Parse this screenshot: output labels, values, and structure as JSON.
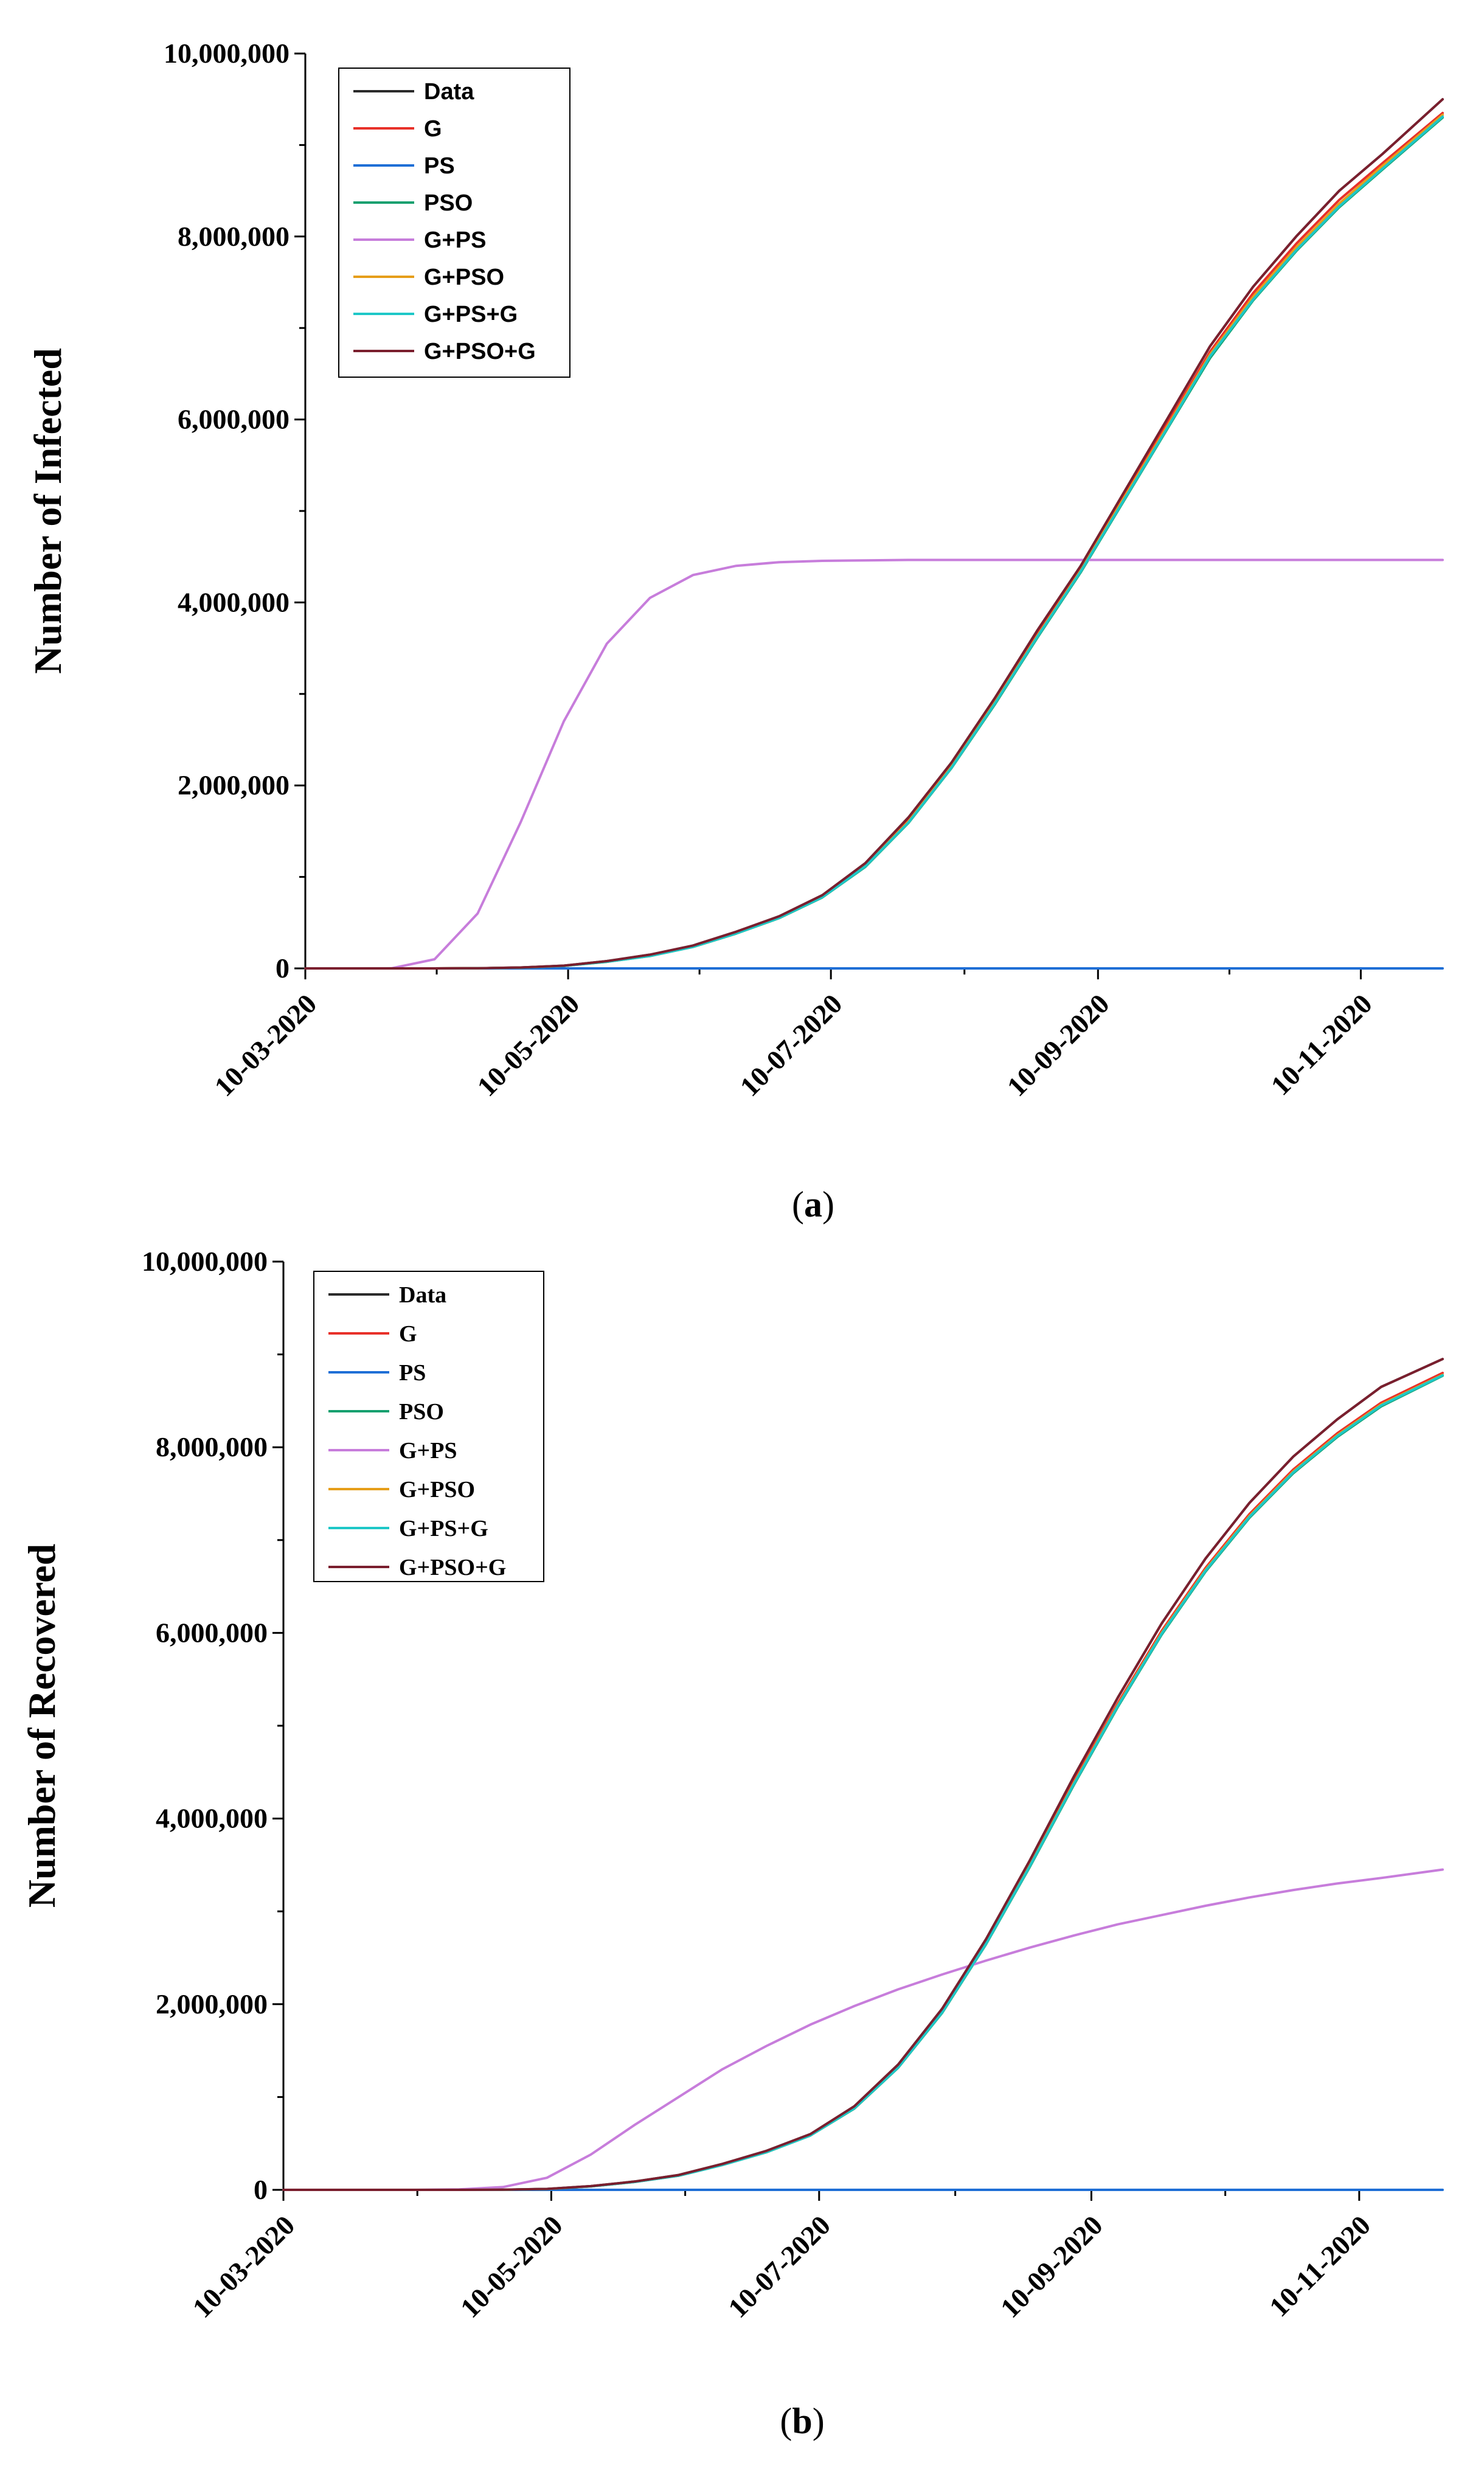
{
  "chart_data": [
    {
      "type": "line",
      "panel": "(a)",
      "panel_letter": "a",
      "title": "",
      "xlabel": "",
      "ylabel": "Number of Infected",
      "ylim": [
        0,
        10000000
      ],
      "xlim": [
        0,
        264
      ],
      "y_ticks": [
        0,
        2000000,
        4000000,
        6000000,
        8000000,
        10000000
      ],
      "y_tick_labels": [
        "0",
        "2,000,000",
        "4,000,000",
        "6,000,000",
        "8,000,000",
        "10,000,000"
      ],
      "x_tick_days": [
        0,
        61,
        122,
        184,
        245
      ],
      "x_tick_labels": [
        "10-03-2020",
        "10-05-2020",
        "10-07-2020",
        "10-09-2020",
        "10-11-2020"
      ],
      "legend_position": "top-left",
      "x_days": [
        0,
        10,
        20,
        30,
        40,
        50,
        60,
        70,
        80,
        90,
        100,
        110,
        120,
        130,
        140,
        150,
        160,
        170,
        180,
        190,
        200,
        210,
        220,
        230,
        240,
        250,
        264
      ],
      "series": [
        {
          "name": "Data",
          "color": "#2b2b2b",
          "values": [
            0,
            0,
            0,
            200,
            2000,
            10000,
            30000,
            80000,
            150000,
            250000,
            400000,
            570000,
            800000,
            1150000,
            1650000,
            2250000,
            2950000,
            3700000,
            4400000,
            5200000,
            6000000,
            6800000,
            7450000,
            8000000,
            8500000,
            8900000,
            9500000
          ]
        },
        {
          "name": "G",
          "color": "#e8312a",
          "values": [
            0,
            0,
            0,
            150,
            1800,
            9000,
            28000,
            75000,
            140000,
            240000,
            390000,
            560000,
            790000,
            1130000,
            1620000,
            2220000,
            2920000,
            3660000,
            4370000,
            5160000,
            5950000,
            6740000,
            7380000,
            7920000,
            8400000,
            8800000,
            9350000
          ]
        },
        {
          "name": "PS",
          "color": "#1f6fd6",
          "values": [
            0,
            0,
            0,
            0,
            0,
            0,
            0,
            0,
            0,
            0,
            0,
            0,
            0,
            0,
            0,
            0,
            0,
            0,
            0,
            0,
            0,
            0,
            0,
            0,
            0,
            0,
            0
          ]
        },
        {
          "name": "PSO",
          "color": "#15a06f",
          "values": [
            0,
            0,
            0,
            120,
            1600,
            8500,
            27000,
            72000,
            135000,
            235000,
            380000,
            550000,
            775000,
            1110000,
            1590000,
            2190000,
            2880000,
            3620000,
            4330000,
            5110000,
            5890000,
            6670000,
            7300000,
            7840000,
            8320000,
            8730000,
            9300000
          ]
        },
        {
          "name": "G+PS",
          "color": "#c77ddb",
          "values": [
            0,
            0,
            1000,
            100000,
            600000,
            1600000,
            2700000,
            3550000,
            4050000,
            4300000,
            4400000,
            4440000,
            4455000,
            4460000,
            4465000,
            4465000,
            4465000,
            4465000,
            4465000,
            4465000,
            4465000,
            4465000,
            4465000,
            4465000,
            4465000,
            4465000,
            4465000
          ]
        },
        {
          "name": "G+PSO",
          "color": "#e69e1a",
          "values": [
            0,
            0,
            0,
            140,
            1700,
            8800,
            27500,
            74000,
            138000,
            238000,
            386000,
            556000,
            782000,
            1120000,
            1605000,
            2205000,
            2900000,
            3640000,
            4350000,
            5140000,
            5920000,
            6710000,
            7340000,
            7880000,
            8360000,
            8770000,
            9330000
          ]
        },
        {
          "name": "G+PS+G",
          "color": "#1ec7c7",
          "values": [
            0,
            0,
            0,
            130,
            1650,
            8600,
            27200,
            73000,
            136000,
            236000,
            382000,
            552000,
            778000,
            1115000,
            1595000,
            2195000,
            2890000,
            3630000,
            4340000,
            5120000,
            5900000,
            6690000,
            7310000,
            7850000,
            8330000,
            8740000,
            9310000
          ]
        },
        {
          "name": "G+PSO+G",
          "color": "#7a1f2e",
          "values": [
            0,
            0,
            0,
            200,
            2000,
            10000,
            30000,
            80000,
            150000,
            250000,
            400000,
            570000,
            800000,
            1150000,
            1650000,
            2250000,
            2950000,
            3700000,
            4400000,
            5200000,
            6000000,
            6800000,
            7450000,
            8000000,
            8500000,
            8900000,
            9500000
          ]
        }
      ]
    },
    {
      "type": "line",
      "panel": "(b)",
      "panel_letter": "b",
      "title": "",
      "xlabel": "",
      "ylabel": "Number of Recovered",
      "ylim": [
        0,
        10000000
      ],
      "xlim": [
        0,
        264
      ],
      "y_ticks": [
        0,
        2000000,
        4000000,
        6000000,
        8000000,
        10000000
      ],
      "y_tick_labels": [
        "0",
        "2,000,000",
        "4,000,000",
        "6,000,000",
        "8,000,000",
        "10,000,000"
      ],
      "x_tick_days": [
        0,
        61,
        122,
        184,
        245
      ],
      "x_tick_labels": [
        "10-03-2020",
        "10-05-2020",
        "10-07-2020",
        "10-09-2020",
        "10-11-2020"
      ],
      "legend_position": "top-left",
      "x_days": [
        0,
        10,
        20,
        30,
        40,
        50,
        60,
        70,
        80,
        90,
        100,
        110,
        120,
        130,
        140,
        150,
        160,
        170,
        180,
        190,
        200,
        210,
        220,
        230,
        240,
        250,
        264
      ],
      "series": [
        {
          "name": "Data",
          "color": "#2b2b2b",
          "values": [
            0,
            0,
            0,
            0,
            0,
            1000,
            10000,
            40000,
            90000,
            160000,
            280000,
            420000,
            600000,
            900000,
            1350000,
            1950000,
            2700000,
            3550000,
            4450000,
            5300000,
            6100000,
            6800000,
            7400000,
            7900000,
            8300000,
            8650000,
            8950000
          ]
        },
        {
          "name": "G",
          "color": "#e8312a",
          "values": [
            0,
            0,
            0,
            0,
            0,
            900,
            9500,
            38000,
            87000,
            155000,
            272000,
            410000,
            590000,
            885000,
            1330000,
            1925000,
            2670000,
            3510000,
            4400000,
            5240000,
            6020000,
            6700000,
            7280000,
            7760000,
            8150000,
            8480000,
            8800000
          ]
        },
        {
          "name": "PS",
          "color": "#1f6fd6",
          "values": [
            0,
            0,
            0,
            0,
            0,
            0,
            0,
            0,
            0,
            0,
            0,
            0,
            0,
            0,
            0,
            0,
            0,
            0,
            0,
            0,
            0,
            0,
            0,
            0,
            0,
            0,
            0
          ]
        },
        {
          "name": "PSO",
          "color": "#15a06f",
          "values": [
            0,
            0,
            0,
            0,
            0,
            850,
            9200,
            37000,
            85000,
            152000,
            268000,
            405000,
            585000,
            875000,
            1315000,
            1905000,
            2645000,
            3480000,
            4360000,
            5200000,
            5980000,
            6660000,
            7240000,
            7720000,
            8110000,
            8440000,
            8770000
          ]
        },
        {
          "name": "G+PS",
          "color": "#c77ddb",
          "values": [
            0,
            0,
            0,
            0,
            5000,
            30000,
            130000,
            380000,
            700000,
            1000000,
            1300000,
            1550000,
            1780000,
            1980000,
            2160000,
            2320000,
            2470000,
            2610000,
            2740000,
            2860000,
            2960000,
            3060000,
            3150000,
            3230000,
            3300000,
            3360000,
            3450000
          ]
        },
        {
          "name": "G+PSO",
          "color": "#e69e1a",
          "values": [
            0,
            0,
            0,
            0,
            0,
            880,
            9400,
            37500,
            86000,
            154000,
            270000,
            408000,
            588000,
            880000,
            1322000,
            1915000,
            2658000,
            3495000,
            4380000,
            5220000,
            6000000,
            6680000,
            7260000,
            7740000,
            8130000,
            8460000,
            8780000
          ]
        },
        {
          "name": "G+PS+G",
          "color": "#1ec7c7",
          "values": [
            0,
            0,
            0,
            0,
            0,
            860,
            9300,
            37200,
            85500,
            153000,
            269000,
            406000,
            586000,
            878000,
            1318000,
            1910000,
            2650000,
            3488000,
            4370000,
            5210000,
            5990000,
            6670000,
            7250000,
            7730000,
            8120000,
            8450000,
            8775000
          ]
        },
        {
          "name": "G+PSO+G",
          "color": "#7a1f2e",
          "values": [
            0,
            0,
            0,
            0,
            0,
            1000,
            10000,
            40000,
            90000,
            160000,
            280000,
            420000,
            600000,
            900000,
            1350000,
            1950000,
            2700000,
            3550000,
            4450000,
            5300000,
            6100000,
            6800000,
            7400000,
            7900000,
            8300000,
            8650000,
            8950000
          ]
        }
      ]
    }
  ]
}
